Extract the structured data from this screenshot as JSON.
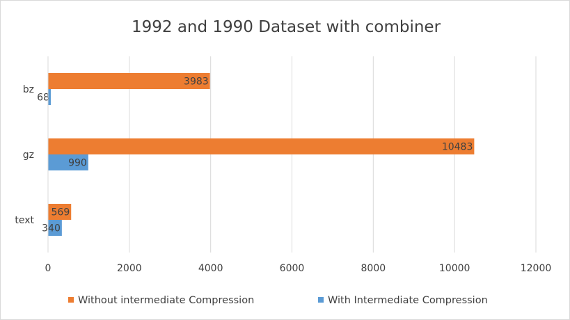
{
  "chart_data": {
    "type": "bar",
    "orientation": "horizontal",
    "title": "1992 and 1990 Dataset with combiner",
    "xlabel": "",
    "ylabel": "",
    "categories": [
      "bz",
      "gz",
      "text"
    ],
    "series": [
      {
        "name": "Without intermediate Compression",
        "color": "#ed7d31",
        "values": [
          3983,
          10483,
          569
        ]
      },
      {
        "name": "With Intermediate Compression",
        "color": "#5b9bd5",
        "values": [
          68,
          990,
          340
        ]
      }
    ],
    "xlim": [
      0,
      12000
    ],
    "xticks": [
      0,
      2000,
      4000,
      6000,
      8000,
      10000,
      12000
    ],
    "grid": true,
    "legend": "bottom",
    "data_labels": true
  }
}
